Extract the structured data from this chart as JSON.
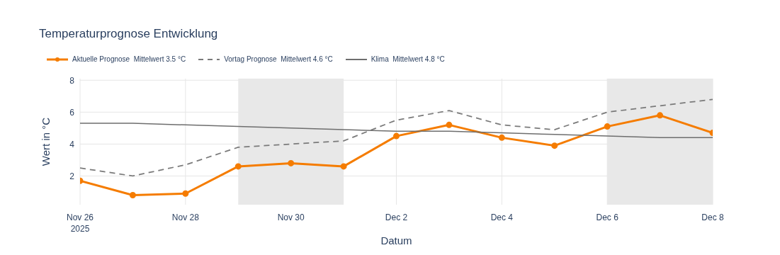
{
  "chart_data": {
    "type": "line",
    "title": "Temperaturprognose Entwicklung",
    "xlabel": "Datum",
    "ylabel": "Wert in °C",
    "x": [
      "2025-11-26",
      "2025-11-27",
      "2025-11-28",
      "2025-11-29",
      "2025-11-30",
      "2025-12-01",
      "2025-12-02",
      "2025-12-03",
      "2025-12-04",
      "2025-12-05",
      "2025-12-06",
      "2025-12-07",
      "2025-12-08"
    ],
    "series": [
      {
        "name": "Aktuelle Prognose  Mittelwert 3.5 °C",
        "color": "#f57c00",
        "marker": "circle",
        "line_style": "solid",
        "values": [
          1.7,
          0.8,
          0.9,
          2.6,
          2.8,
          2.6,
          4.5,
          5.2,
          4.4,
          3.9,
          5.1,
          5.8,
          4.7
        ]
      },
      {
        "name": "Vortag Prognose  Mittelwert 4.6 °C",
        "color": "#7a7a7a",
        "marker": "none",
        "line_style": "dashed",
        "values": [
          2.5,
          2.0,
          2.7,
          3.8,
          4.0,
          4.2,
          5.5,
          6.1,
          5.2,
          4.9,
          6.0,
          6.4,
          6.8
        ]
      },
      {
        "name": "Klima  Mittelwert 4.8 °C",
        "color": "#6e6e6e",
        "marker": "none",
        "line_style": "solid",
        "values": [
          5.3,
          5.3,
          5.2,
          5.1,
          5.0,
          4.9,
          4.8,
          4.8,
          4.7,
          4.6,
          4.5,
          4.4,
          4.4
        ]
      }
    ],
    "xlim": [
      "2025-11-26",
      "2025-12-08"
    ],
    "xticks": [
      {
        "value": "2025-11-26",
        "label": "Nov 26\n2025"
      },
      {
        "value": "2025-11-28",
        "label": "Nov 28"
      },
      {
        "value": "2025-11-30",
        "label": "Nov 30"
      },
      {
        "value": "2025-12-02",
        "label": "Dec 2"
      },
      {
        "value": "2025-12-04",
        "label": "Dec 4"
      },
      {
        "value": "2025-12-06",
        "label": "Dec 6"
      },
      {
        "value": "2025-12-08",
        "label": "Dec 8"
      }
    ],
    "ylim": [
      0.2,
      8.1
    ],
    "yticks": [
      2,
      4,
      6,
      8
    ],
    "bands": [
      {
        "axis": "x",
        "from": "2025-11-29",
        "to": "2025-12-01",
        "color": "#e8e8e8"
      },
      {
        "axis": "x",
        "from": "2025-12-06",
        "to": "2025-12-08",
        "color": "#e8e8e8"
      }
    ],
    "grid": true,
    "legend": "top left"
  }
}
